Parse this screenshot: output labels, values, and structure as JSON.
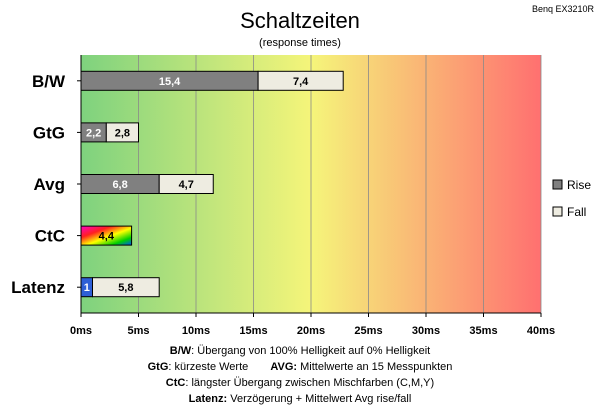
{
  "corner_label": "Benq EX3210R",
  "chart_data": {
    "type": "bar",
    "stacked": true,
    "orientation": "horizontal",
    "title": "Schaltzeiten",
    "subtitle": "(response times)",
    "categories": [
      "B/W",
      "GtG",
      "Avg",
      "CtC",
      "Latenz"
    ],
    "series": [
      {
        "name": "Rise",
        "values": [
          15.4,
          2.2,
          6.8,
          4.4,
          1
        ],
        "labels": [
          "15,4",
          "2,2",
          "6,8",
          "4,4",
          "1"
        ],
        "color": "#808080"
      },
      {
        "name": "Fall",
        "values": [
          7.4,
          2.8,
          4.7,
          null,
          5.8
        ],
        "labels": [
          "7,4",
          "2,8",
          "4,7",
          "",
          "5,8"
        ],
        "color": "#eeece1"
      }
    ],
    "special_colors": {
      "CtC": "rainbow",
      "Latenz": "#2e5fd6"
    },
    "x_ticks": [
      "0ms",
      "5ms",
      "10ms",
      "15ms",
      "20ms",
      "25ms",
      "30ms",
      "35ms",
      "40ms"
    ],
    "xlim": [
      0,
      40
    ],
    "background_gradient": [
      "#7ed27e",
      "#f5f57a",
      "#ff7070"
    ],
    "grid": true,
    "legend_position": "right"
  },
  "footnotes": {
    "line1": {
      "key": "B/W",
      "text": ":  Übergang von 100% Helligkeit auf 0% Helligkeit"
    },
    "line2": {
      "key_a": "GtG",
      "text_a": ": kürzeste  Werte",
      "key_b": "AVG:",
      "text_b": " Mittelwerte  an 15 Messpunkten"
    },
    "line3": {
      "key": "CtC",
      "text": ": längster Übergang  zwischen Mischfarben  (C,M,Y)"
    },
    "line4": {
      "key": "Latenz:",
      "text": " Verzögerung  + Mittelwert Avg rise/fall"
    }
  }
}
